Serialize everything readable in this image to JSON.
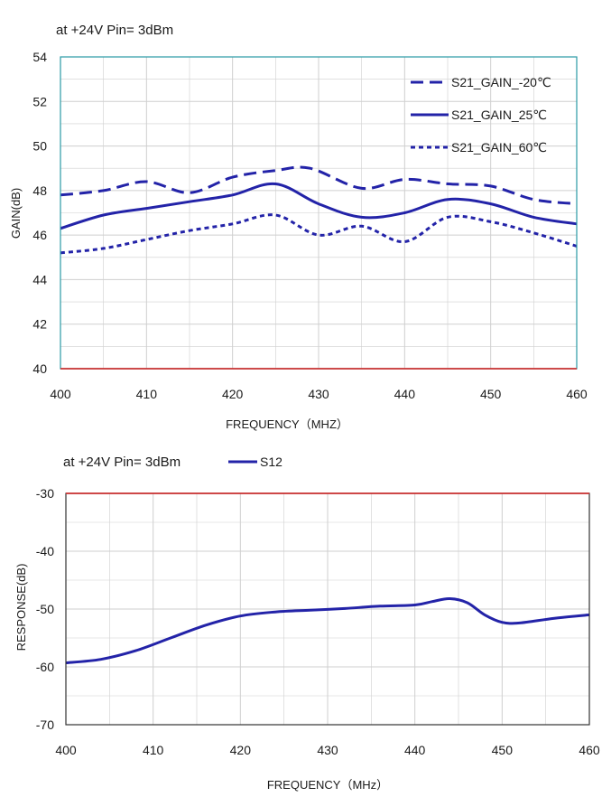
{
  "chart_data": [
    {
      "type": "line",
      "subtitle": "at +24V Pin= 3dBm",
      "xlabel": "FREQUENCY（MHZ）",
      "ylabel": "GAIN(dB)",
      "xlim": [
        400,
        460
      ],
      "ylim": [
        40,
        54
      ],
      "xticks": [
        "400",
        "410",
        "420",
        "430",
        "440",
        "450",
        "460"
      ],
      "yticks": [
        "40",
        "42",
        "44",
        "46",
        "48",
        "50",
        "52",
        "54"
      ],
      "grid": true,
      "legend_position": "top-right",
      "colors": {
        "series": "#2323a8",
        "frame": "#2a9aa5",
        "grid": "#cfcfcf",
        "baseline": "#cc3333"
      },
      "series": [
        {
          "name": "S21_GAIN_-20℃",
          "style": "dashed",
          "x": [
            400,
            405,
            410,
            415,
            420,
            425,
            429,
            435,
            440,
            445,
            450,
            455,
            460
          ],
          "y": [
            47.8,
            48.0,
            48.4,
            47.9,
            48.6,
            48.9,
            49.0,
            48.1,
            48.5,
            48.3,
            48.2,
            47.6,
            47.4
          ]
        },
        {
          "name": "S21_GAIN_25℃",
          "style": "solid",
          "x": [
            400,
            405,
            410,
            415,
            420,
            425,
            430,
            435,
            440,
            445,
            450,
            455,
            460
          ],
          "y": [
            46.3,
            46.9,
            47.2,
            47.5,
            47.8,
            48.3,
            47.4,
            46.8,
            47.0,
            47.6,
            47.4,
            46.8,
            46.5
          ]
        },
        {
          "name": "S21_GAIN_60℃",
          "style": "dotted",
          "x": [
            400,
            405,
            410,
            415,
            420,
            425,
            430,
            435,
            440,
            445,
            450,
            455,
            460
          ],
          "y": [
            45.2,
            45.4,
            45.8,
            46.2,
            46.5,
            46.9,
            46.0,
            46.4,
            45.7,
            46.8,
            46.6,
            46.1,
            45.5
          ]
        }
      ]
    },
    {
      "type": "line",
      "subtitle": "at +24V Pin=  3dBm",
      "xlabel": "FREQUENCY（MHz）",
      "ylabel": "RESPONSE(dB)",
      "xlim": [
        400,
        460
      ],
      "ylim": [
        -70,
        -30
      ],
      "xticks": [
        "400",
        "410",
        "420",
        "430",
        "440",
        "450",
        "460"
      ],
      "yticks": [
        "-70",
        "-60",
        "-50",
        "-40",
        "-30"
      ],
      "grid": true,
      "legend_position": "top",
      "colors": {
        "series": "#2323a8",
        "frame": "#333333",
        "grid": "#cfcfcf",
        "baseline": "#cc3333"
      },
      "series": [
        {
          "name": "S12",
          "style": "solid",
          "x": [
            400,
            404,
            408,
            412,
            416,
            420,
            424,
            428,
            432,
            436,
            440,
            442,
            444,
            446,
            448,
            450,
            452,
            456,
            460
          ],
          "y": [
            -59.3,
            -58.7,
            -57.2,
            -55.0,
            -52.8,
            -51.2,
            -50.5,
            -50.2,
            -49.9,
            -49.5,
            -49.3,
            -48.7,
            -48.2,
            -48.9,
            -51.0,
            -52.3,
            -52.4,
            -51.6,
            -51.0
          ]
        }
      ]
    }
  ]
}
